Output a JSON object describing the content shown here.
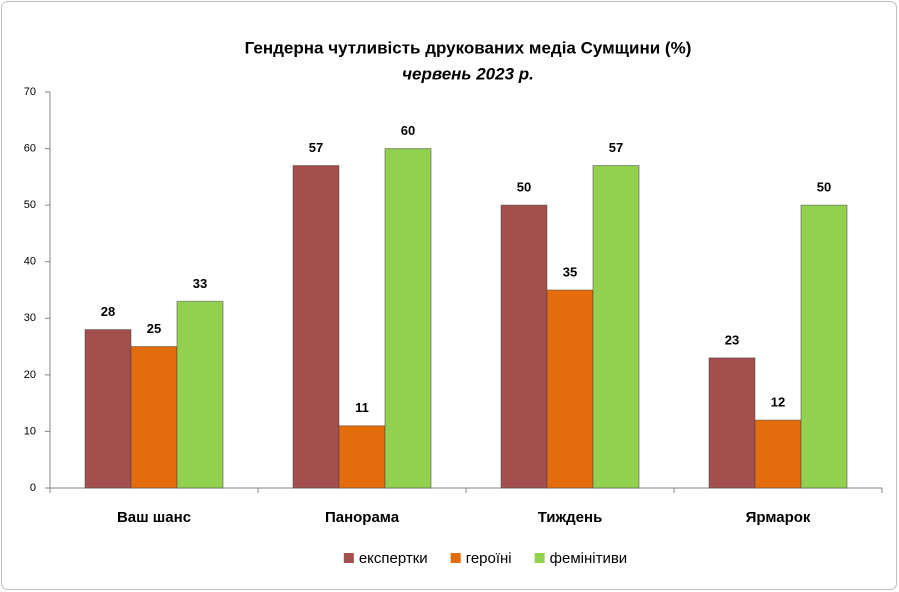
{
  "chart_data": {
    "type": "bar",
    "title": "Гендерна чутливість друкованих медіа Сумщини (%)",
    "subtitle": "червень 2023 р.",
    "categories": [
      "Ваш шанс",
      "Панорама",
      "Тиждень",
      "Ярмарок"
    ],
    "series": [
      {
        "name": "експертки",
        "color": "#a24f4e",
        "values": [
          28,
          57,
          50,
          23
        ]
      },
      {
        "name": "героїні",
        "color": "#e46c0a",
        "values": [
          25,
          11,
          35,
          12
        ]
      },
      {
        "name": "фемінітиви",
        "color": "#92d050",
        "values": [
          33,
          60,
          57,
          50
        ]
      }
    ],
    "ylim": [
      0,
      70
    ],
    "yticks": [
      0,
      10,
      20,
      30,
      40,
      50,
      60,
      70
    ],
    "legend": "bottom"
  }
}
